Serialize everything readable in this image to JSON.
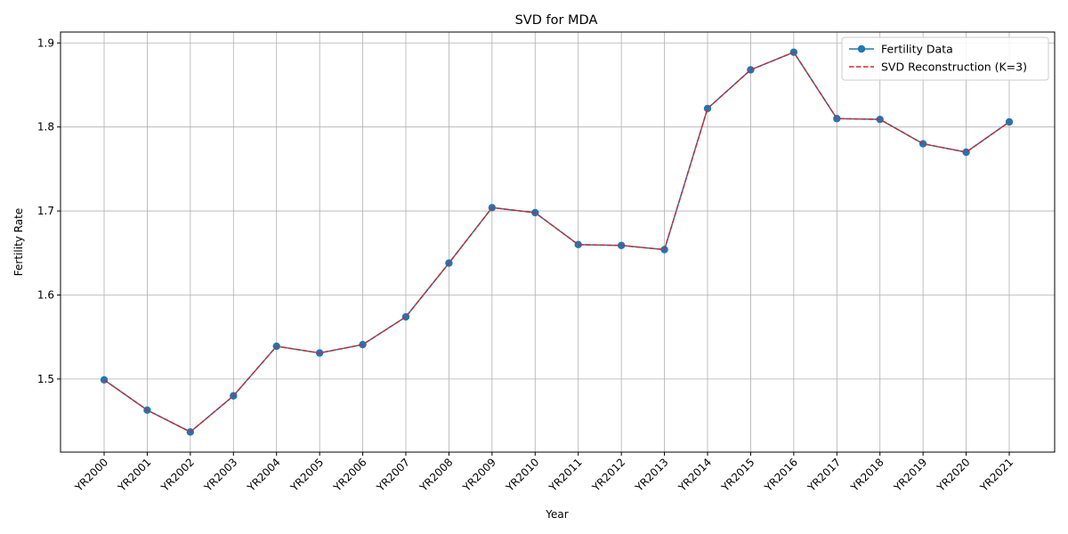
{
  "chart_data": {
    "type": "line",
    "title": "SVD for MDA",
    "xlabel": "Year",
    "ylabel": "Fertility Rate",
    "categories": [
      "YR2000",
      "YR2001",
      "YR2002",
      "YR2003",
      "YR2004",
      "YR2005",
      "YR2006",
      "YR2007",
      "YR2008",
      "YR2009",
      "YR2010",
      "YR2011",
      "YR2012",
      "YR2013",
      "YR2014",
      "YR2015",
      "YR2016",
      "YR2017",
      "YR2018",
      "YR2019",
      "YR2020",
      "YR2021"
    ],
    "ylim": [
      1.413,
      1.913
    ],
    "yticks": [
      1.5,
      1.6,
      1.7,
      1.8,
      1.9
    ],
    "ytick_labels": [
      "1.5",
      "1.6",
      "1.7",
      "1.8",
      "1.9"
    ],
    "grid": true,
    "legend_position": "top-right",
    "series": [
      {
        "name": "Fertility Data",
        "color": "#1f77b4",
        "style": "solid-with-markers",
        "values": [
          1.499,
          1.463,
          1.437,
          1.48,
          1.539,
          1.531,
          1.541,
          1.574,
          1.638,
          1.704,
          1.698,
          1.66,
          1.659,
          1.654,
          1.822,
          1.868,
          1.889,
          1.81,
          1.809,
          1.78,
          1.77,
          1.806
        ]
      },
      {
        "name": "SVD Reconstruction (K=3)",
        "color": "#d62728",
        "style": "dashed",
        "values": [
          1.499,
          1.463,
          1.437,
          1.48,
          1.539,
          1.531,
          1.541,
          1.574,
          1.638,
          1.704,
          1.698,
          1.66,
          1.659,
          1.654,
          1.822,
          1.868,
          1.889,
          1.81,
          1.809,
          1.78,
          1.77,
          1.806
        ]
      }
    ]
  }
}
